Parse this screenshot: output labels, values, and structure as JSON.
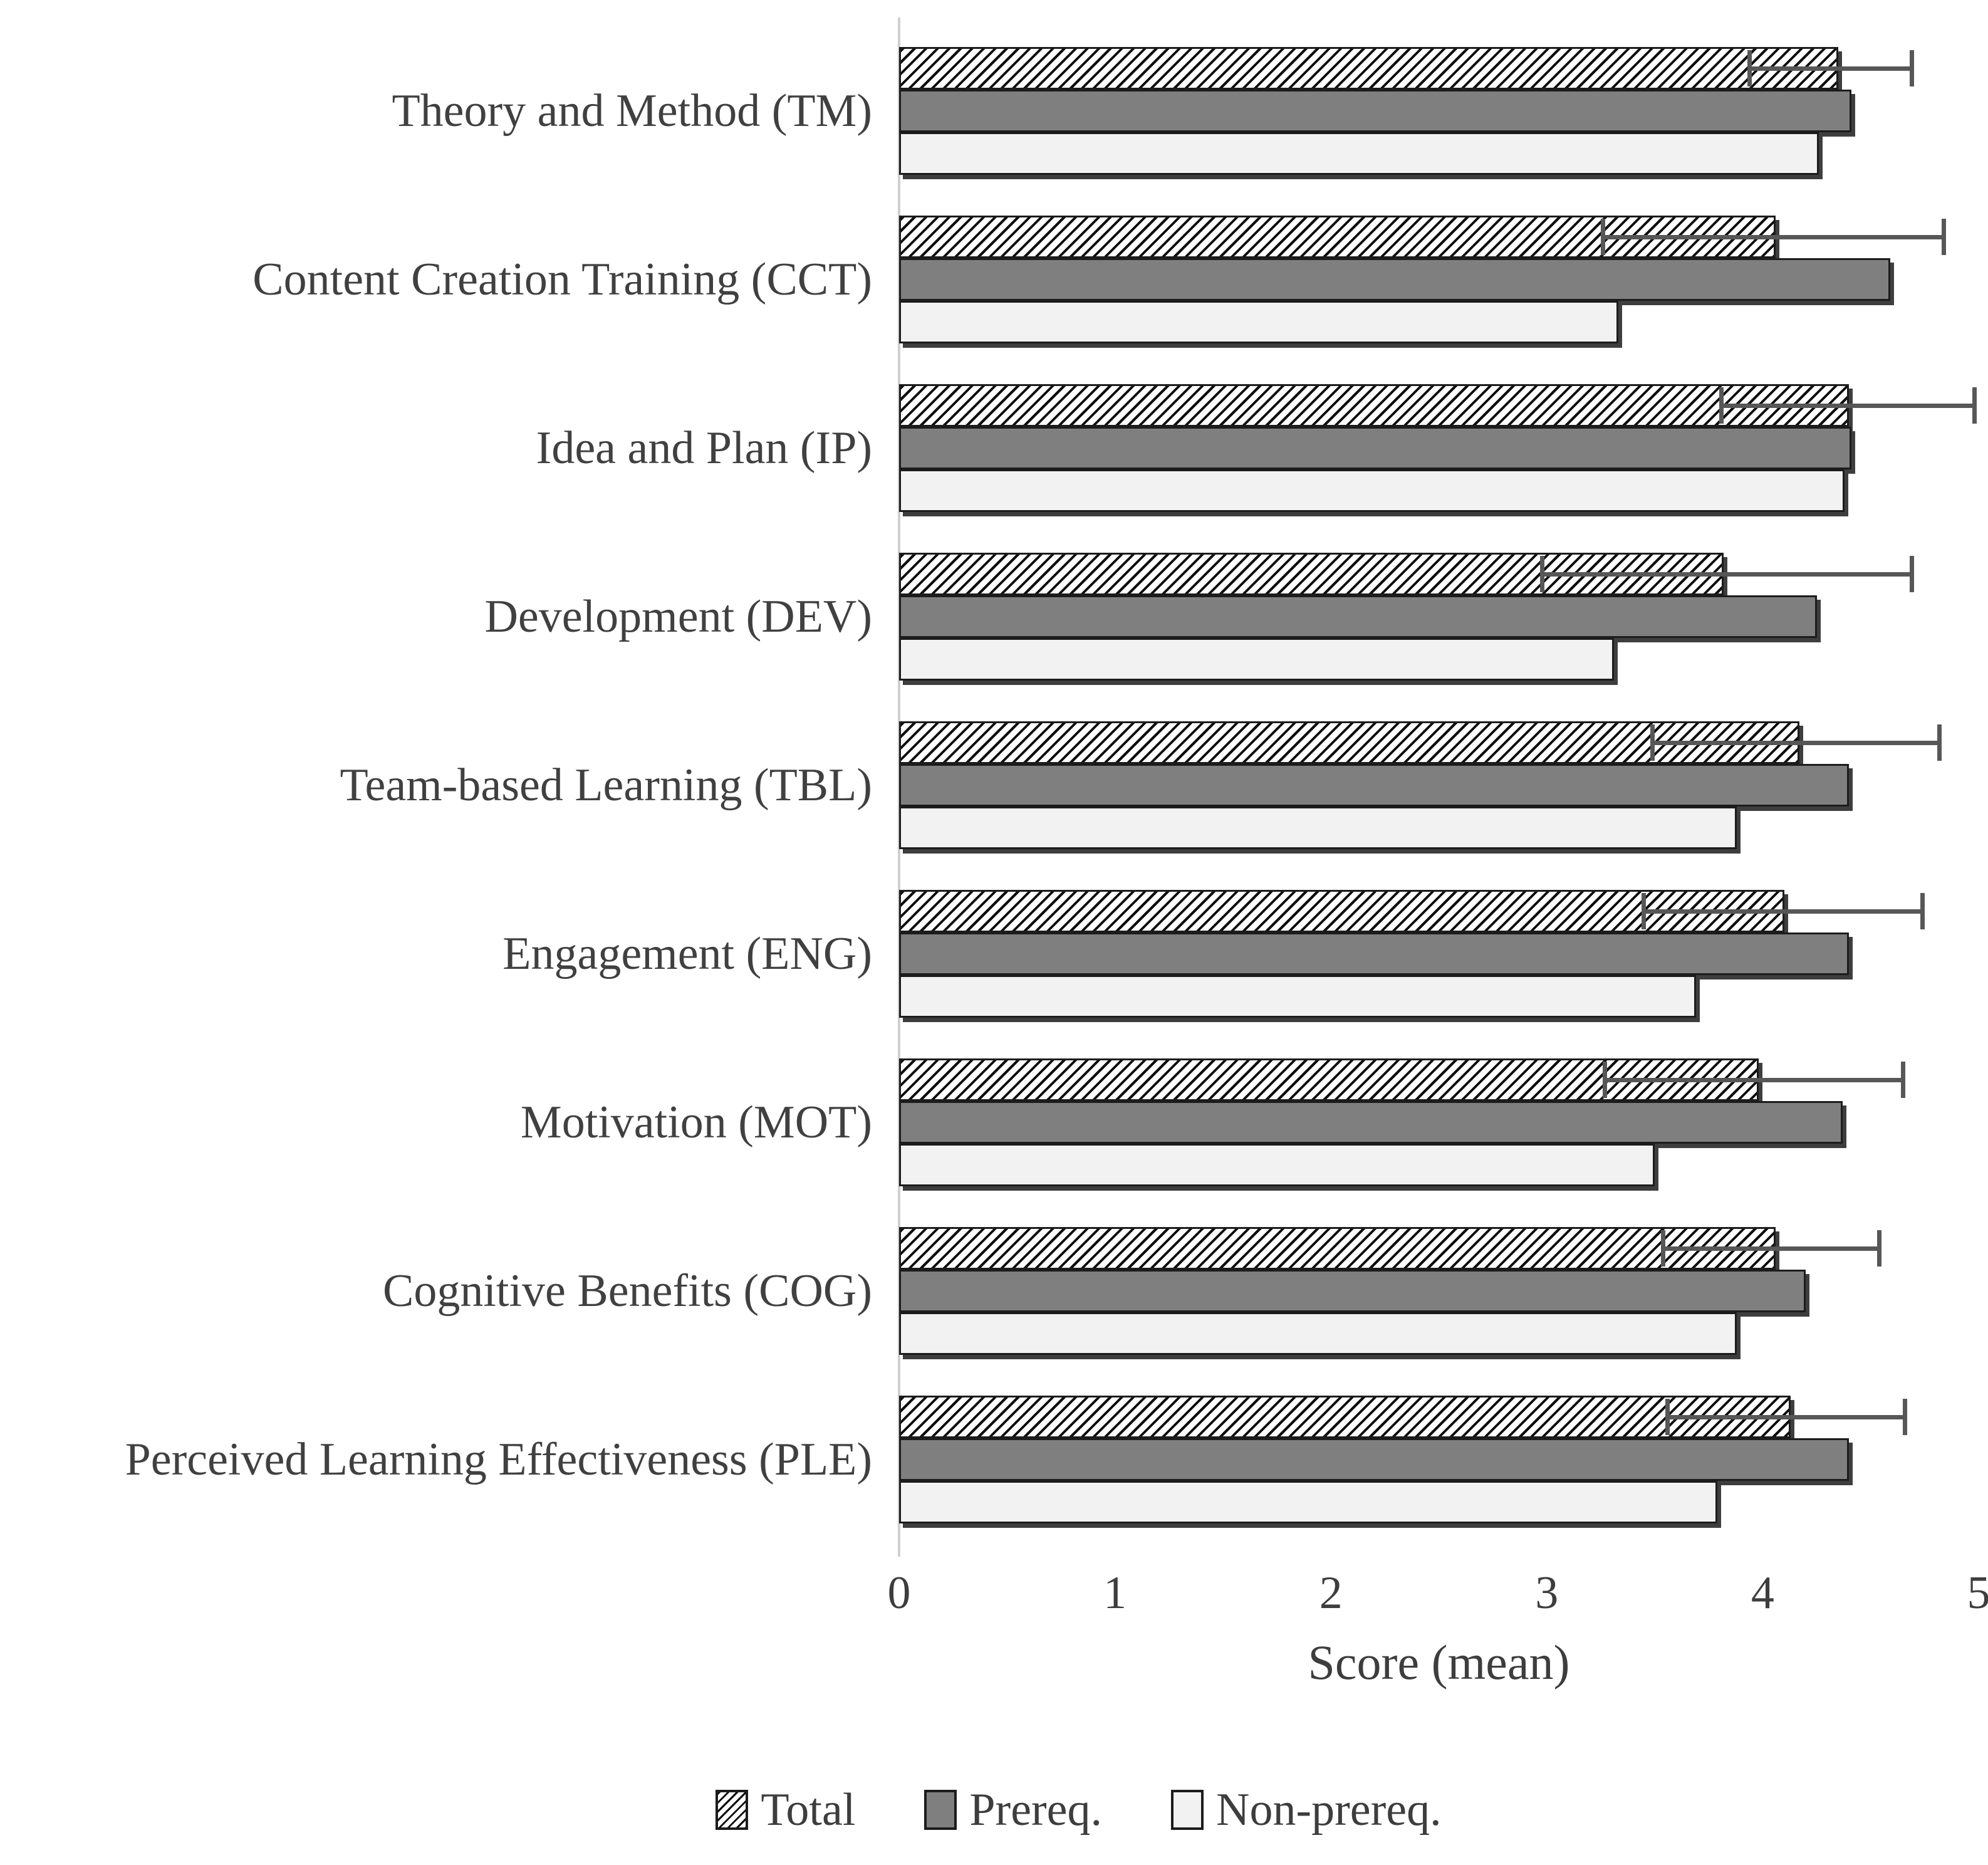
{
  "chart_data": {
    "type": "bar",
    "orientation": "horizontal",
    "title": "",
    "xlabel": "Score (mean)",
    "xlim": [
      0,
      5
    ],
    "xticks": [
      "0",
      "1",
      "2",
      "3",
      "4",
      "5"
    ],
    "grid": false,
    "legend_position": "bottom",
    "categories": [
      "Theory and Method (TM)",
      "Content Creation Training (CCT)",
      "Idea and Plan (IP)",
      "Development (DEV)",
      "Team-based Learning (TBL)",
      "Engagement (ENG)",
      "Motivation (MOT)",
      "Cognitive Benefits (COG)",
      "Perceived Learning Effectiveness (PLE)"
    ],
    "series": [
      {
        "name": "Total",
        "style": "hatched-diagonal",
        "fill": "#ffffff",
        "hatch_color": "#0e0e0e",
        "values": [
          4.35,
          4.06,
          4.4,
          3.82,
          4.17,
          4.1,
          3.98,
          4.06,
          4.13
        ],
        "error_low": [
          3.93,
          3.25,
          3.8,
          2.97,
          3.48,
          3.44,
          3.26,
          3.53,
          3.55
        ],
        "error_high": [
          4.7,
          4.85,
          4.99,
          4.7,
          4.83,
          4.75,
          4.66,
          4.55,
          4.67
        ]
      },
      {
        "name": "Prereq.",
        "style": "solid",
        "fill": "#7f7f7f",
        "values": [
          4.41,
          4.59,
          4.41,
          4.25,
          4.4,
          4.4,
          4.37,
          4.2,
          4.4
        ]
      },
      {
        "name": "Non-prereq.",
        "style": "solid",
        "fill": "#f2f2f2",
        "values": [
          4.26,
          3.33,
          4.38,
          3.31,
          3.88,
          3.69,
          3.5,
          3.88,
          3.79
        ]
      }
    ]
  },
  "colors": {
    "background": "#ffffff",
    "axis_line": "#cfcfcf",
    "bar_border": "#1c1c1c",
    "error_bar": "#575757",
    "text": "#3d3d3d"
  }
}
